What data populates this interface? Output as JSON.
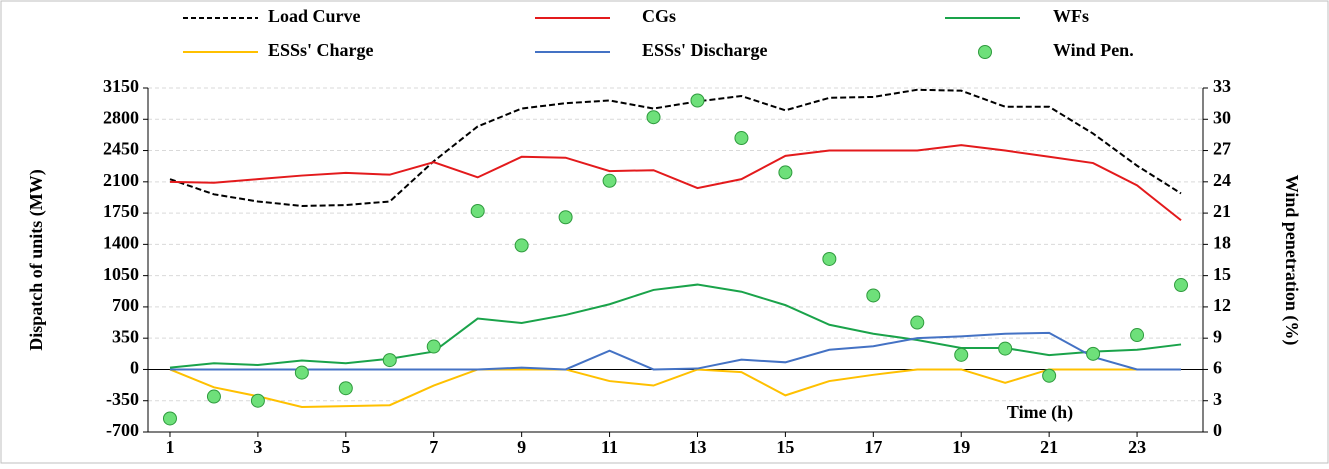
{
  "chart_data": {
    "type": "line",
    "x": [
      1,
      2,
      3,
      4,
      5,
      6,
      7,
      8,
      9,
      10,
      11,
      12,
      13,
      14,
      15,
      16,
      17,
      18,
      19,
      20,
      21,
      22,
      23,
      24
    ],
    "xlim": [
      0.5,
      24.5
    ],
    "xticks": [
      1,
      3,
      5,
      7,
      9,
      11,
      13,
      15,
      17,
      19,
      21,
      23
    ],
    "ylim": [
      -700,
      3150
    ],
    "yticks": [
      -700,
      -350,
      0,
      350,
      700,
      1050,
      1400,
      1750,
      2100,
      2450,
      2800,
      3150
    ],
    "y2lim": [
      0,
      33
    ],
    "y2ticks": [
      0,
      3,
      6,
      9,
      12,
      15,
      18,
      21,
      24,
      27,
      30,
      33
    ],
    "ylabel": "Dispatch of units (MW)",
    "y2label": "Wind penetration (%)",
    "xlabel": "Time (h)",
    "grid": true,
    "legend": "top",
    "series": [
      {
        "name": "Load Curve",
        "color": "#000000",
        "dashed": true,
        "values": [
          2130,
          1960,
          1880,
          1830,
          1840,
          1880,
          2330,
          2720,
          2920,
          2980,
          3010,
          2920,
          3000,
          3060,
          2900,
          3040,
          3050,
          3130,
          3120,
          2940,
          2940,
          2640,
          2280,
          1970
        ]
      },
      {
        "name": "CGs",
        "color": "#e31a1c",
        "values": [
          2100,
          2090,
          2130,
          2170,
          2200,
          2180,
          2320,
          2150,
          2380,
          2370,
          2220,
          2230,
          2030,
          2130,
          2390,
          2450,
          2450,
          2450,
          2510,
          2450,
          2380,
          2310,
          2060,
          1670
        ]
      },
      {
        "name": "WFs",
        "color": "#1aa34a",
        "values": [
          20,
          70,
          50,
          100,
          70,
          120,
          200,
          570,
          520,
          610,
          730,
          890,
          950,
          870,
          720,
          500,
          400,
          330,
          240,
          240,
          160,
          200,
          220,
          280
        ]
      },
      {
        "name": "ESSs' Charge",
        "color": "#ffc000",
        "values": [
          0,
          -200,
          -300,
          -420,
          -410,
          -400,
          -180,
          0,
          0,
          0,
          -130,
          -180,
          0,
          -30,
          -290,
          -130,
          -60,
          0,
          0,
          -150,
          0,
          0,
          0,
          0
        ]
      },
      {
        "name": "ESSs' Discharge",
        "color": "#4472c4",
        "values": [
          0,
          0,
          0,
          0,
          0,
          0,
          0,
          0,
          20,
          0,
          210,
          0,
          10,
          110,
          80,
          220,
          260,
          350,
          370,
          400,
          410,
          140,
          0,
          0
        ]
      },
      {
        "name": "Wind Pen.",
        "color": "#6ee07a",
        "marker": "circle",
        "axis": "y2",
        "values": [
          1.3,
          3.4,
          3.0,
          5.7,
          4.2,
          6.9,
          8.2,
          21.2,
          17.9,
          20.6,
          24.1,
          30.2,
          31.8,
          28.2,
          24.9,
          16.6,
          13.1,
          10.5,
          7.4,
          8.0,
          5.4,
          7.5,
          9.3,
          14.1
        ]
      }
    ]
  }
}
